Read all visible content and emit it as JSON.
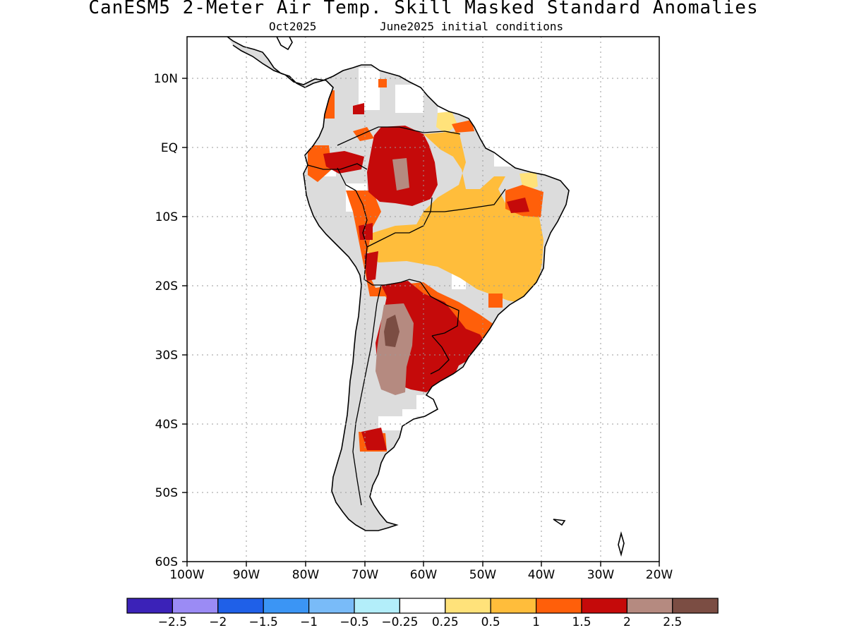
{
  "title": "CanESM5 2-Meter Air Temp. Skill Masked Standard Anomalies",
  "subtitle_month": "Oct2025",
  "subtitle_ic": "June2025 initial conditions",
  "axes": {
    "lon_labels": [
      "100W",
      "90W",
      "80W",
      "70W",
      "60W",
      "50W",
      "40W",
      "30W",
      "20W"
    ],
    "lat_labels": [
      "10N",
      "EQ",
      "10S",
      "20S",
      "30S",
      "40S",
      "50S",
      "60S"
    ],
    "lon_range": [
      -100,
      -20
    ],
    "lat_range": [
      -60,
      16
    ],
    "grid": "dotted"
  },
  "colorbar": {
    "colors": [
      "#3b22b8",
      "#9b8bf5",
      "#1f60e8",
      "#3b95f5",
      "#79bbf8",
      "#b3eefa",
      "#ffffff",
      "#ffe27a",
      "#ffbd3b",
      "#ff5f0a",
      "#c50a0a",
      "#b58a80",
      "#7b4d43"
    ],
    "labels": [
      "−2.5",
      "−2",
      "−1.5",
      "−1",
      "−0.5",
      "−0.25",
      "0.25",
      "0.5",
      "1",
      "1.5",
      "2",
      "2.5"
    ]
  },
  "legend_colors": {
    "masked": "#dcdcdc",
    "coast": "#000000"
  }
}
